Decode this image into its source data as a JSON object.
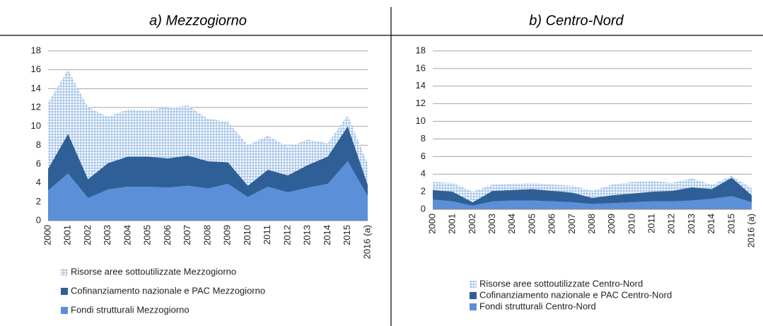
{
  "chart_data": [
    {
      "type": "area",
      "title": "a) Mezzogiorno",
      "categories": [
        "2000",
        "2001",
        "2002",
        "2003",
        "2004",
        "2005",
        "2006",
        "2007",
        "2008",
        "2009",
        "2010",
        "2011",
        "2012",
        "2013",
        "2014",
        "2015",
        "2016 (a)"
      ],
      "series": [
        {
          "name": "Fondi strutturali Mezzogiorno",
          "color": "#5b8fd8",
          "values": [
            3.2,
            5.0,
            2.4,
            3.3,
            3.6,
            3.6,
            3.5,
            3.7,
            3.4,
            3.9,
            2.5,
            3.6,
            3.0,
            3.5,
            3.9,
            6.3,
            2.6
          ]
        },
        {
          "name": "Cofinanziamento nazionale e PAC Mezzogiorno",
          "color": "#2f5f97",
          "values": [
            2.3,
            4.2,
            2.0,
            2.8,
            3.2,
            3.2,
            3.1,
            3.2,
            2.9,
            2.3,
            1.2,
            1.8,
            1.8,
            2.4,
            2.9,
            3.7,
            1.2
          ]
        },
        {
          "name": "Risorse aree sottoutilizzate Mezzogiorno",
          "color": "#8eb4e3",
          "hatch": true,
          "values": [
            7.0,
            6.8,
            7.6,
            4.9,
            5.0,
            4.9,
            5.4,
            5.3,
            4.5,
            4.3,
            4.3,
            3.6,
            3.0,
            2.7,
            1.4,
            1.2,
            2.2
          ]
        }
      ],
      "ylim": [
        0,
        18
      ],
      "yticks": [
        0,
        2,
        4,
        6,
        8,
        10,
        12,
        14,
        16,
        18
      ],
      "grid": true
    },
    {
      "type": "area",
      "title": "b) Centro-Nord",
      "categories": [
        "2000",
        "2001",
        "2002",
        "2003",
        "2004",
        "2005",
        "2006",
        "2007",
        "2008",
        "2009",
        "2010",
        "2011",
        "2012",
        "2013",
        "2014",
        "2015",
        "2016 (a)"
      ],
      "series": [
        {
          "name": "Fondi strutturali Centro-Nord",
          "color": "#5b8fd8",
          "values": [
            1.1,
            0.9,
            0.4,
            0.9,
            1.0,
            1.0,
            0.9,
            0.8,
            0.6,
            0.7,
            0.8,
            0.9,
            0.9,
            1.0,
            1.2,
            1.5,
            0.8
          ]
        },
        {
          "name": "Cofinanziamento nazionale e PAC Centro-Nord",
          "color": "#2f5f97",
          "values": [
            1.1,
            1.1,
            0.4,
            1.2,
            1.2,
            1.3,
            1.2,
            1.1,
            0.7,
            0.9,
            1.0,
            1.1,
            1.2,
            1.5,
            1.1,
            2.1,
            0.8
          ]
        },
        {
          "name": "Risorse aree sottoutilizzate Centro-Nord",
          "color": "#8eb4e3",
          "hatch": true,
          "values": [
            0.9,
            1.0,
            1.2,
            0.7,
            0.7,
            0.7,
            0.7,
            0.8,
            0.8,
            1.2,
            1.3,
            1.2,
            0.9,
            1.0,
            0.5,
            0.2,
            0.8
          ]
        }
      ],
      "ylim": [
        0,
        18
      ],
      "yticks": [
        0,
        2,
        4,
        6,
        8,
        10,
        12,
        14,
        16,
        18
      ],
      "grid": true
    }
  ]
}
